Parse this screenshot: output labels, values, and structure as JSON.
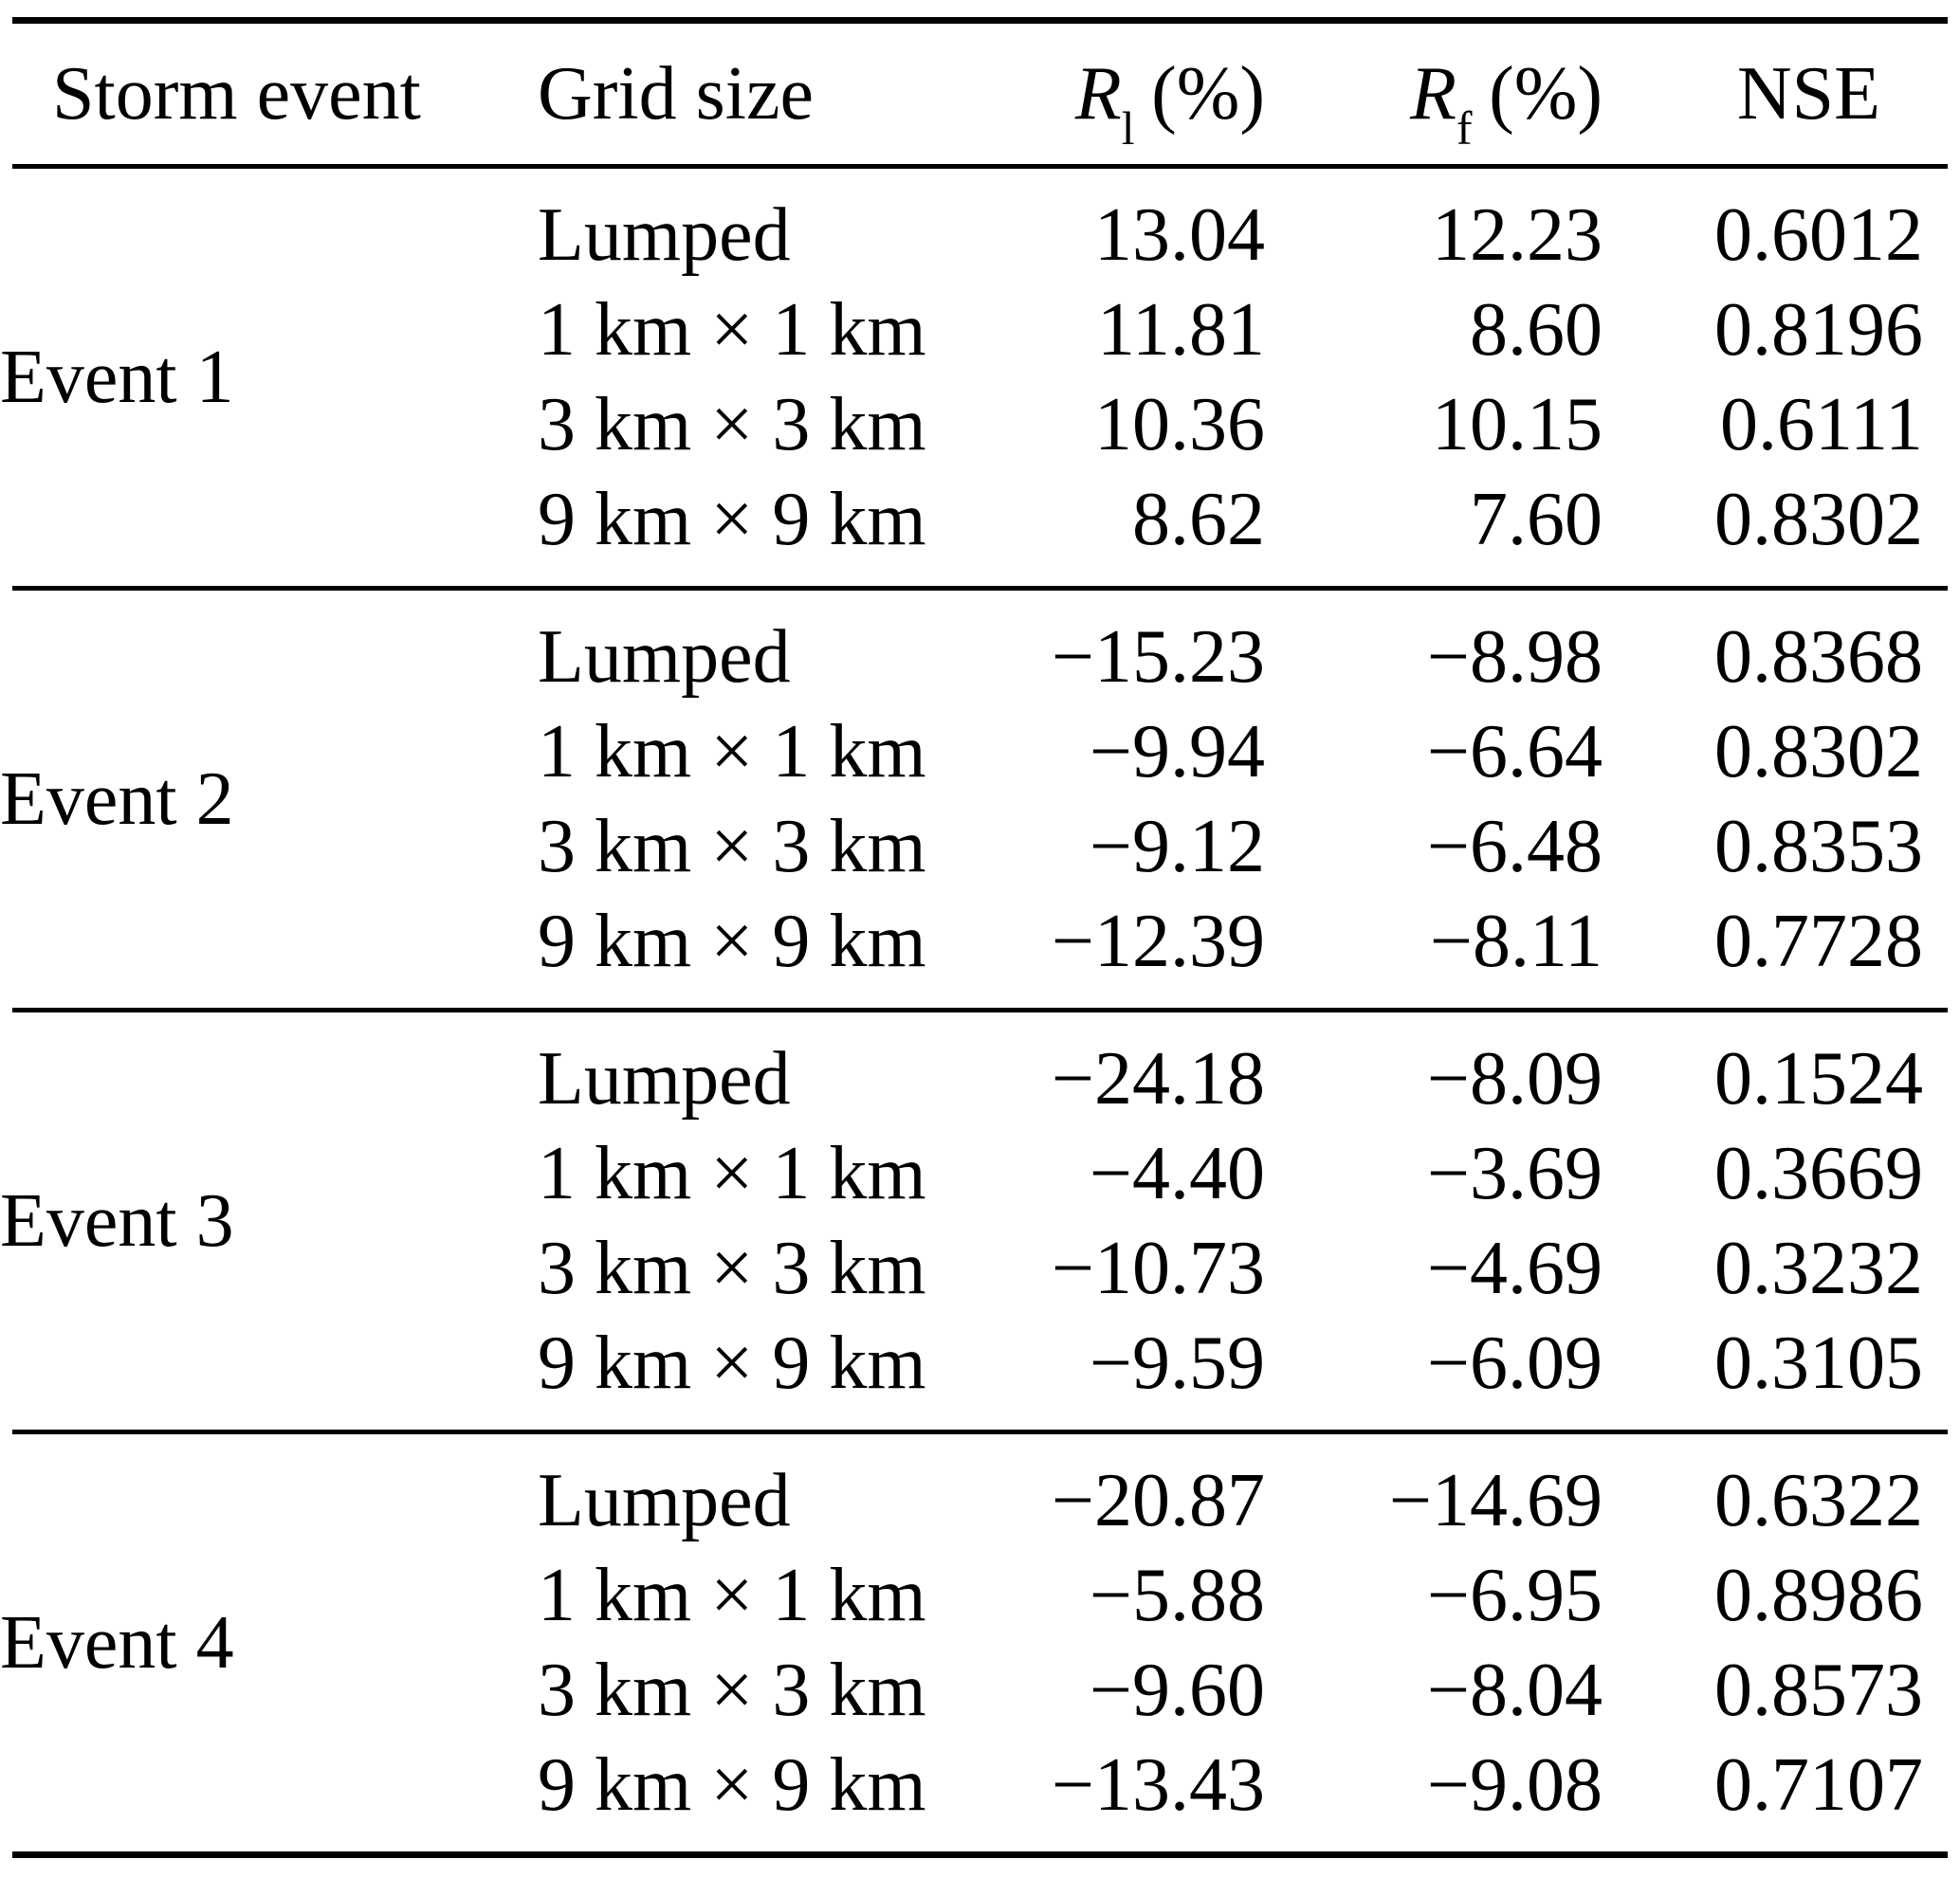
{
  "table": {
    "header": {
      "storm_event": "Storm event",
      "grid_size": "Grid size",
      "r_l": {
        "symbol": "R",
        "sub": "l",
        "unit": "(%)"
      },
      "r_f": {
        "symbol": "R",
        "sub": "f",
        "unit": "(%)"
      },
      "nse": "NSE"
    },
    "groups": [
      {
        "event": "Event 1",
        "rows": [
          {
            "grid": "Lumped",
            "rl": "13.04",
            "rf": "12.23",
            "nse": "0.6012"
          },
          {
            "grid": "1 km × 1 km",
            "rl": "11.81",
            "rf": "8.60",
            "nse": "0.8196"
          },
          {
            "grid": "3 km × 3 km",
            "rl": "10.36",
            "rf": "10.15",
            "nse": "0.6111"
          },
          {
            "grid": "9 km × 9 km",
            "rl": "8.62",
            "rf": "7.60",
            "nse": "0.8302"
          }
        ]
      },
      {
        "event": "Event 2",
        "rows": [
          {
            "grid": "Lumped",
            "rl": "−15.23",
            "rf": "−8.98",
            "nse": "0.8368"
          },
          {
            "grid": "1 km × 1 km",
            "rl": "−9.94",
            "rf": "−6.64",
            "nse": "0.8302"
          },
          {
            "grid": "3 km × 3 km",
            "rl": "−9.12",
            "rf": "−6.48",
            "nse": "0.8353"
          },
          {
            "grid": "9 km × 9 km",
            "rl": "−12.39",
            "rf": "−8.11",
            "nse": "0.7728"
          }
        ]
      },
      {
        "event": "Event 3",
        "rows": [
          {
            "grid": "Lumped",
            "rl": "−24.18",
            "rf": "−8.09",
            "nse": "0.1524"
          },
          {
            "grid": "1 km × 1 km",
            "rl": "−4.40",
            "rf": "−3.69",
            "nse": "0.3669"
          },
          {
            "grid": "3 km × 3 km",
            "rl": "−10.73",
            "rf": "−4.69",
            "nse": "0.3232"
          },
          {
            "grid": "9 km × 9 km",
            "rl": "−9.59",
            "rf": "−6.09",
            "nse": "0.3105"
          }
        ]
      },
      {
        "event": "Event 4",
        "rows": [
          {
            "grid": "Lumped",
            "rl": "−20.87",
            "rf": "−14.69",
            "nse": "0.6322"
          },
          {
            "grid": "1 km × 1 km",
            "rl": "−5.88",
            "rf": "−6.95",
            "nse": "0.8986"
          },
          {
            "grid": "3 km × 3 km",
            "rl": "−9.60",
            "rf": "−8.04",
            "nse": "0.8573"
          },
          {
            "grid": "9 km × 9 km",
            "rl": "−13.43",
            "rf": "−9.08",
            "nse": "0.7107"
          }
        ]
      }
    ]
  }
}
